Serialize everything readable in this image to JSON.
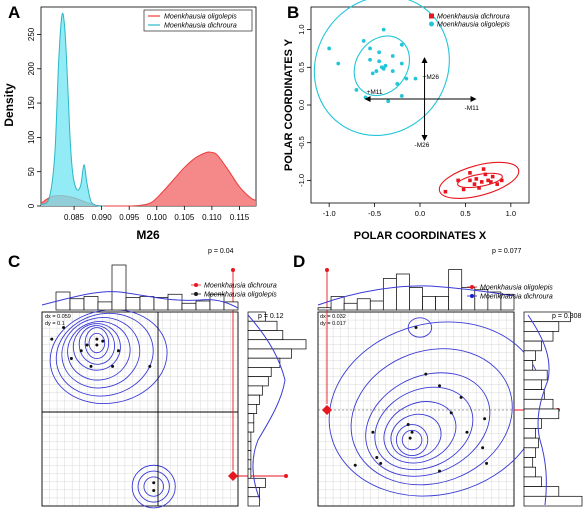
{
  "panels": {
    "A": {
      "letter": "A"
    },
    "B": {
      "letter": "B"
    },
    "C": {
      "letter": "C"
    },
    "D": {
      "letter": "D"
    }
  },
  "chart_data": [
    {
      "id": "A",
      "type": "area",
      "xlabel": "M26",
      "ylabel": "Density",
      "xlim": [
        0.079,
        0.118
      ],
      "ylim": [
        0,
        290
      ],
      "xticks": [
        0.085,
        0.09,
        0.095,
        0.1,
        0.105,
        0.11,
        0.115
      ],
      "xtick_labels": [
        "0.085",
        "0.090",
        "0.095",
        "0.100",
        "0.105",
        "0.110",
        "0.115"
      ],
      "yticks": [
        0,
        50,
        100,
        150,
        200,
        250
      ],
      "ytick_labels": [
        "0",
        "50",
        "100",
        "150",
        "200",
        "250"
      ],
      "legend_position": "top-right",
      "series": [
        {
          "name": "Moenkhausia oligolepis",
          "color": "#ef3b3b",
          "fill": "#f47c7c",
          "x": [
            0.079,
            0.081,
            0.083,
            0.085,
            0.087,
            0.089,
            0.091,
            0.093,
            0.095,
            0.097,
            0.099,
            0.101,
            0.103,
            0.105,
            0.107,
            0.109,
            0.11,
            0.111,
            0.113,
            0.115,
            0.117,
            0.118
          ],
          "y": [
            4,
            14,
            15,
            12,
            6,
            1,
            0,
            0,
            0,
            1,
            5,
            20,
            38,
            56,
            70,
            78,
            78,
            74,
            52,
            28,
            12,
            8
          ]
        },
        {
          "name": "Moenkhausia dichroura",
          "color": "#2ab7c7",
          "fill": "#6fe6f2",
          "x": [
            0.079,
            0.0805,
            0.0815,
            0.0822,
            0.0828,
            0.0833,
            0.0838,
            0.0843,
            0.0848,
            0.0855,
            0.0862,
            0.0868,
            0.0873,
            0.088,
            0.0887,
            0.0895,
            0.0905
          ],
          "y": [
            2,
            12,
            75,
            210,
            278,
            260,
            185,
            95,
            45,
            24,
            30,
            60,
            35,
            8,
            2,
            0,
            0
          ]
        }
      ]
    },
    {
      "id": "B",
      "type": "scatter",
      "xlabel": "POLAR COORDINATES X",
      "ylabel": "POLAR COORDINATES Y",
      "xlim": [
        -1.2,
        1.2
      ],
      "ylim": [
        -1.3,
        1.3
      ],
      "xticks": [
        -1.0,
        -0.5,
        0.0,
        0.5,
        1.0
      ],
      "xtick_labels": [
        "-1.0",
        "-0.5",
        "0.0",
        "0.5",
        "1.0"
      ],
      "yticks": [
        -1.0,
        -0.5,
        0.0,
        0.5,
        1.0
      ],
      "ytick_labels": [
        "-1.0",
        "-0.5",
        "0.0",
        "0.5",
        "1.0"
      ],
      "legend_position": "top-right",
      "axis_cross_labels": {
        "pos_y": "+M26",
        "neg_y": "-M26",
        "pos_x": "-M11",
        "neg_x": "+M11"
      },
      "series": [
        {
          "name": "Moenkhausia dichroura",
          "color": "#e8161f",
          "marker": "square",
          "points": [
            [
              0.28,
              -1.15
            ],
            [
              0.42,
              -1.0
            ],
            [
              0.48,
              -1.12
            ],
            [
              0.55,
              -1.0
            ],
            [
              0.6,
              -1.05
            ],
            [
              0.62,
              -0.98
            ],
            [
              0.68,
              -1.02
            ],
            [
              0.72,
              -0.92
            ],
            [
              0.75,
              -1.0
            ],
            [
              0.78,
              -1.02
            ],
            [
              0.8,
              -0.95
            ],
            [
              0.85,
              -1.05
            ],
            [
              0.7,
              -0.85
            ],
            [
              0.9,
              -1.0
            ],
            [
              0.55,
              -0.9
            ],
            [
              0.65,
              -1.1
            ]
          ],
          "ellipses": [
            {
              "cx": 0.65,
              "cy": -1.0,
              "rx": 0.45,
              "ry": 0.2,
              "angle": -15
            },
            {
              "cx": 0.66,
              "cy": -1.0,
              "rx": 0.25,
              "ry": 0.08,
              "angle": -10
            }
          ]
        },
        {
          "name": "Moenkhausia oligolepis",
          "color": "#22c6d8",
          "marker": "circle",
          "points": [
            [
              -0.62,
              0.85
            ],
            [
              -0.4,
              1.0
            ],
            [
              -0.55,
              0.75
            ],
            [
              -0.45,
              0.7
            ],
            [
              -0.3,
              0.65
            ],
            [
              -0.48,
              0.45
            ],
            [
              -0.42,
              0.5
            ],
            [
              -0.4,
              0.48
            ],
            [
              -0.52,
              0.42
            ],
            [
              -0.38,
              0.52
            ],
            [
              -0.3,
              0.45
            ],
            [
              -0.2,
              0.55
            ],
            [
              -0.15,
              0.35
            ],
            [
              -0.25,
              0.28
            ],
            [
              -0.7,
              0.2
            ],
            [
              -0.6,
              0.1
            ],
            [
              -0.35,
              0.05
            ],
            [
              -0.2,
              0.12
            ],
            [
              -0.05,
              0.35
            ],
            [
              -0.9,
              0.55
            ],
            [
              -1.0,
              0.75
            ],
            [
              -0.2,
              0.8
            ],
            [
              -0.45,
              0.58
            ],
            [
              -0.55,
              0.6
            ]
          ],
          "ellipses": [
            {
              "cx": -0.42,
              "cy": 0.52,
              "rx": 0.72,
              "ry": 0.95,
              "angle": 35
            },
            {
              "cx": -0.42,
              "cy": 0.52,
              "rx": 0.28,
              "ry": 0.42,
              "angle": 35
            }
          ]
        }
      ]
    },
    {
      "id": "C",
      "type": "heatmap",
      "legend_position": "top-right",
      "legend": [
        {
          "name": "Moenkhausia dichroura",
          "color": "#e8161f"
        },
        {
          "name": "Moenkhausia oligolepis",
          "color": "#1a1a1a"
        }
      ],
      "stats": {
        "dx": "dx = 0.059",
        "dy": "dy = 0.1"
      },
      "p_top": "p = 0.04",
      "p_right": "p = 0.12",
      "points": [
        [
          0.05,
          0.86
        ],
        [
          0.11,
          0.92
        ],
        [
          0.15,
          0.76
        ],
        [
          0.2,
          0.8
        ],
        [
          0.23,
          0.83
        ],
        [
          0.28,
          0.86
        ],
        [
          0.28,
          0.83
        ],
        [
          0.31,
          0.85
        ],
        [
          0.25,
          0.72
        ],
        [
          0.36,
          0.72
        ],
        [
          0.39,
          0.8
        ],
        [
          0.55,
          0.72
        ],
        [
          0.57,
          0.08
        ],
        [
          0.57,
          0.12
        ]
      ],
      "hist_top": [
        0,
        0.4,
        0.25,
        0.3,
        0.18,
        1.0,
        0.28,
        0.3,
        0.28,
        0.35,
        0.15,
        0.2,
        0.35,
        0.18
      ],
      "hist_right": [
        0.3,
        0.5,
        0.6,
        1.0,
        0.75,
        0.55,
        0.4,
        0.35,
        0.25,
        0.2,
        0.15,
        0.1,
        0.1,
        0.05,
        0.05,
        0.05,
        0.05,
        0.05,
        0.3,
        0.2,
        0.2
      ]
    },
    {
      "id": "D",
      "type": "heatmap",
      "legend_position": "top-right",
      "legend": [
        {
          "name": "Moenkhausia oligolepis",
          "color": "#e8161f"
        },
        {
          "name": "Moenkhausia dichroura",
          "color": "#1a1ad0"
        }
      ],
      "stats": {
        "dx": "dx = 0.032",
        "dy": "dy = 0.017"
      },
      "p_top": "p = 0.077",
      "p_right": "p = 0.308",
      "points": [
        [
          0.5,
          0.92
        ],
        [
          0.3,
          0.25
        ],
        [
          0.32,
          0.22
        ],
        [
          0.19,
          0.21
        ],
        [
          0.28,
          0.38
        ],
        [
          0.46,
          0.42
        ],
        [
          0.48,
          0.38
        ],
        [
          0.47,
          0.35
        ],
        [
          0.62,
          0.62
        ],
        [
          0.73,
          0.56
        ],
        [
          0.68,
          0.48
        ],
        [
          0.76,
          0.38
        ],
        [
          0.55,
          0.68
        ],
        [
          0.85,
          0.45
        ],
        [
          0.84,
          0.3
        ],
        [
          0.86,
          0.22
        ],
        [
          0.62,
          0.18
        ]
      ],
      "hist_top": [
        0.05,
        0.3,
        0.15,
        0.25,
        0.2,
        0.7,
        0.8,
        0.5,
        0.3,
        0.3,
        0.9,
        0.5,
        0.45,
        0.4,
        0.35
      ],
      "hist_right": [
        0.8,
        0.6,
        0.5,
        0.3,
        0.2,
        0.15,
        0.4,
        0.3,
        0.35,
        0.5,
        0.6,
        0.3,
        0.2,
        0.25,
        0.2,
        0.15,
        0.2,
        0.3,
        0.6,
        1.0
      ]
    }
  ]
}
